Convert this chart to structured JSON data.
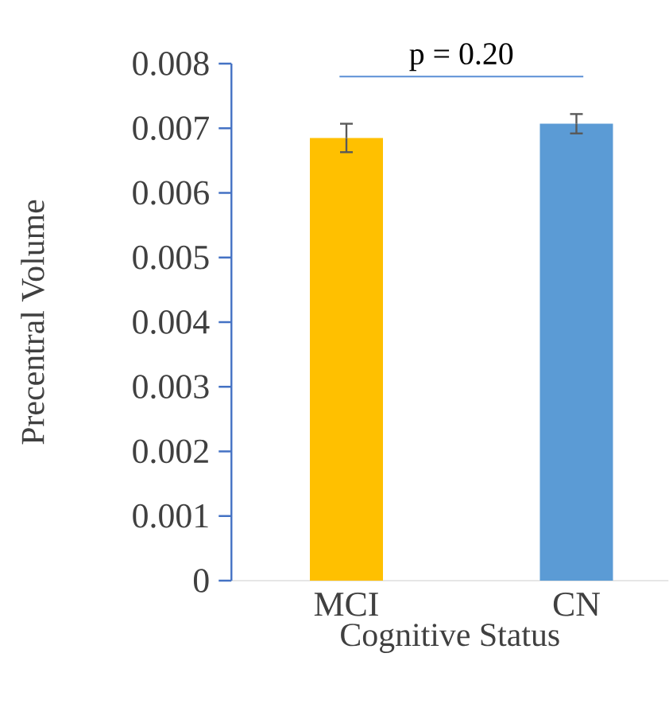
{
  "chart_data": {
    "type": "bar",
    "xlabel": "Cognitive Status",
    "ylabel": "Precentral Volume",
    "categories": [
      "MCI",
      "CN"
    ],
    "values": [
      0.00685,
      0.00707
    ],
    "colors": [
      "#ffc000",
      "#5b9bd5"
    ],
    "errors": [
      0.00022,
      0.00015
    ],
    "ylim": [
      0,
      0.008
    ],
    "yticks": [
      0,
      0.001,
      0.002,
      0.003,
      0.004,
      0.005,
      0.006,
      0.007,
      0.008
    ],
    "annotations": [
      "p = 0.20"
    ],
    "grid": false
  }
}
